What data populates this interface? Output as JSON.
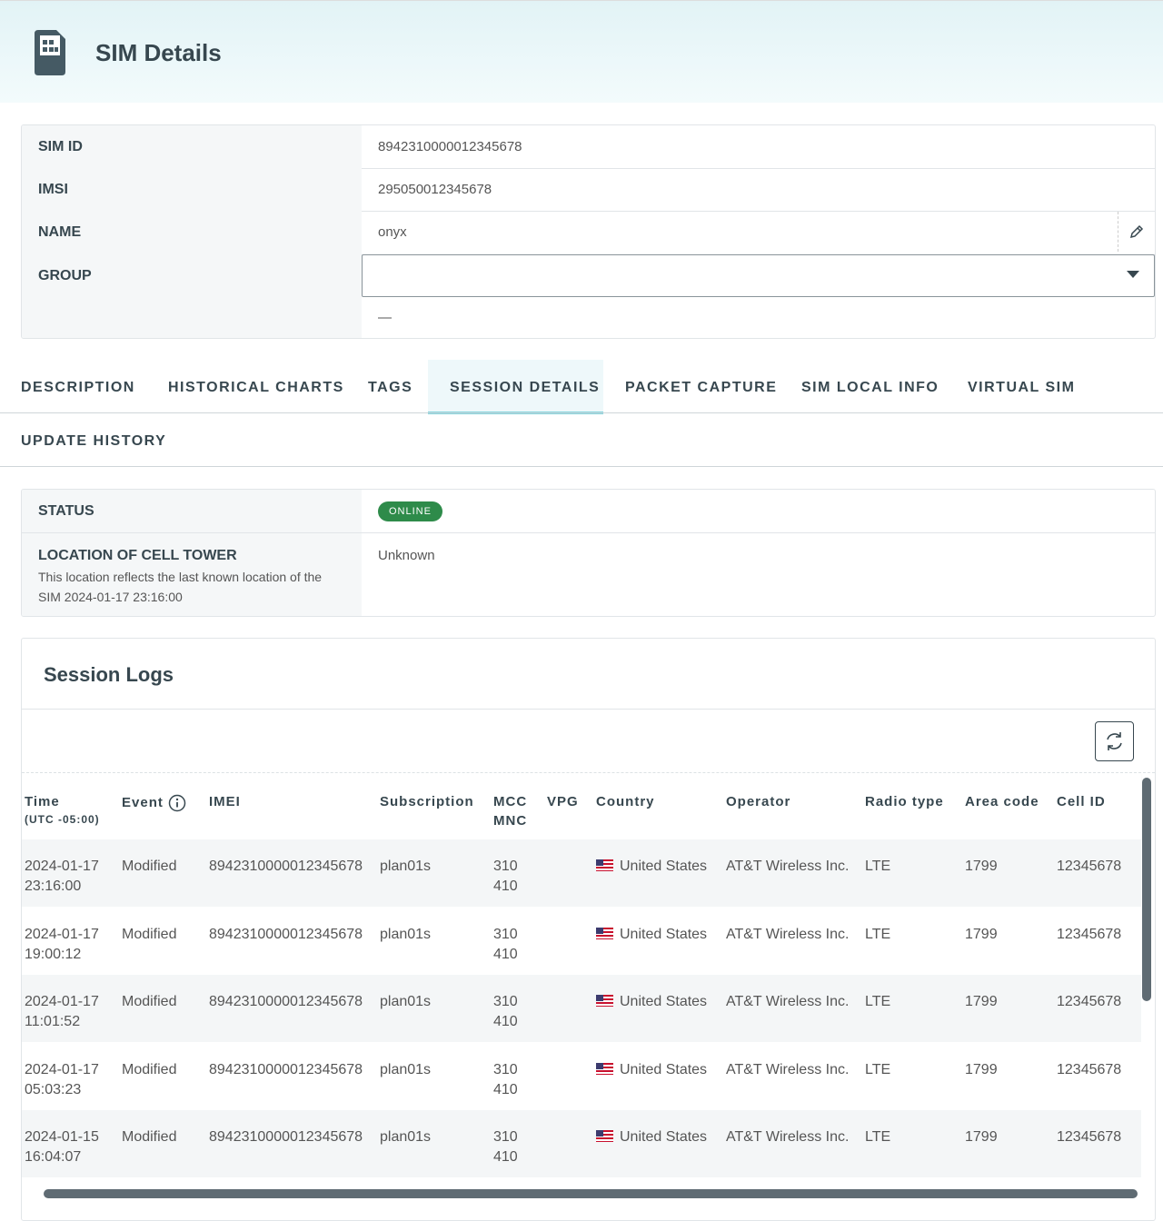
{
  "header": {
    "title": "SIM Details"
  },
  "details": {
    "rows": [
      {
        "label": "SIM ID",
        "value": "8942310000012345678"
      },
      {
        "label": "IMSI",
        "value": "295050012345678"
      },
      {
        "label": "NAME",
        "value": "onyx"
      },
      {
        "label": "GROUP",
        "value": "—"
      }
    ]
  },
  "tabs": [
    "DESCRIPTION",
    "HISTORICAL CHARTS",
    "TAGS",
    "SESSION DETAILS",
    "PACKET CAPTURE",
    "SIM LOCAL INFO",
    "VIRTUAL SIM",
    "UPDATE HISTORY"
  ],
  "status": {
    "rows": [
      {
        "label": "STATUS",
        "value": "ONLINE"
      },
      {
        "label": "LOCATION OF CELL TOWER",
        "note": "This location reflects the last known location of the SIM 2024-01-17 23:16:00",
        "value": "Unknown"
      }
    ]
  },
  "session_logs": {
    "title": "Session Logs",
    "columns": [
      {
        "label": "Time",
        "sub": "(UTC -05:00)"
      },
      {
        "label": "Event"
      },
      {
        "label": "IMEI"
      },
      {
        "label": "Subscription"
      },
      {
        "label": "MCC",
        "sub": "MNC"
      },
      {
        "label": "VPG"
      },
      {
        "label": "Country"
      },
      {
        "label": "Operator"
      },
      {
        "label": "Radio type"
      },
      {
        "label": "Area code"
      },
      {
        "label": "Cell ID"
      }
    ],
    "rows": [
      {
        "date": "2024-01-17",
        "time": "23:16:00",
        "event": "Modified",
        "imei": "8942310000012345678",
        "subscription": "plan01s",
        "mcc": "310",
        "mnc": "410",
        "country": "United States",
        "operator": "AT&T Wireless Inc.",
        "radio_type": "LTE",
        "area_code": "1799",
        "cell_id": "12345678"
      },
      {
        "date": "2024-01-17",
        "time": "19:00:12",
        "event": "Modified",
        "imei": "8942310000012345678",
        "subscription": "plan01s",
        "mcc": "310",
        "mnc": "410",
        "country": "United States",
        "operator": "AT&T Wireless Inc.",
        "radio_type": "LTE",
        "area_code": "1799",
        "cell_id": "12345678"
      },
      {
        "date": "2024-01-17",
        "time": "11:01:52",
        "event": "Modified",
        "imei": "8942310000012345678",
        "subscription": "plan01s",
        "mcc": "310",
        "mnc": "410",
        "country": "United States",
        "operator": "AT&T Wireless Inc.",
        "radio_type": "LTE",
        "area_code": "1799",
        "cell_id": "12345678"
      },
      {
        "date": "2024-01-17",
        "time": "05:03:23",
        "event": "Modified",
        "imei": "8942310000012345678",
        "subscription": "plan01s",
        "mcc": "310",
        "mnc": "410",
        "country": "United States",
        "operator": "AT&T Wireless Inc.",
        "radio_type": "LTE",
        "area_code": "1799",
        "cell_id": "12345678"
      },
      {
        "date": "2024-01-15",
        "time": "16:04:07",
        "event": "Modified",
        "imei": "8942310000012345678",
        "subscription": "plan01s",
        "mcc": "310",
        "mnc": "410",
        "country": "United States",
        "operator": "AT&T Wireless Inc.",
        "radio_type": "LTE",
        "area_code": "1799",
        "cell_id": "12345678"
      }
    ]
  }
}
